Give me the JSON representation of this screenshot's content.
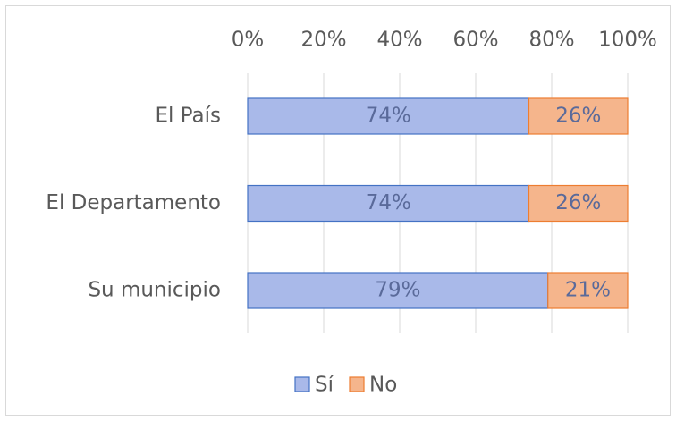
{
  "chart_data": {
    "type": "stacked_barh",
    "categories": [
      "El País",
      "El Departamento",
      "Su municipio"
    ],
    "series": [
      {
        "name": "Sí",
        "color": "#a9b9e9",
        "edge": "#4472c4",
        "values": [
          74,
          74,
          79
        ],
        "value_labels": [
          "74%",
          "74%",
          "79%"
        ]
      },
      {
        "name": "No",
        "color": "#f5b58c",
        "edge": "#ed7d31",
        "values": [
          26,
          26,
          21
        ],
        "value_labels": [
          "26%",
          "26%",
          "21%"
        ]
      }
    ],
    "xlim": [
      0,
      100
    ],
    "xticks": [
      {
        "value": 0,
        "label": "0%"
      },
      {
        "value": 20,
        "label": "20%"
      },
      {
        "value": 40,
        "label": "40%"
      },
      {
        "value": 60,
        "label": "60%"
      },
      {
        "value": 80,
        "label": "80%"
      },
      {
        "value": 100,
        "label": "100%"
      }
    ],
    "grid": true,
    "legend": "bottom"
  }
}
